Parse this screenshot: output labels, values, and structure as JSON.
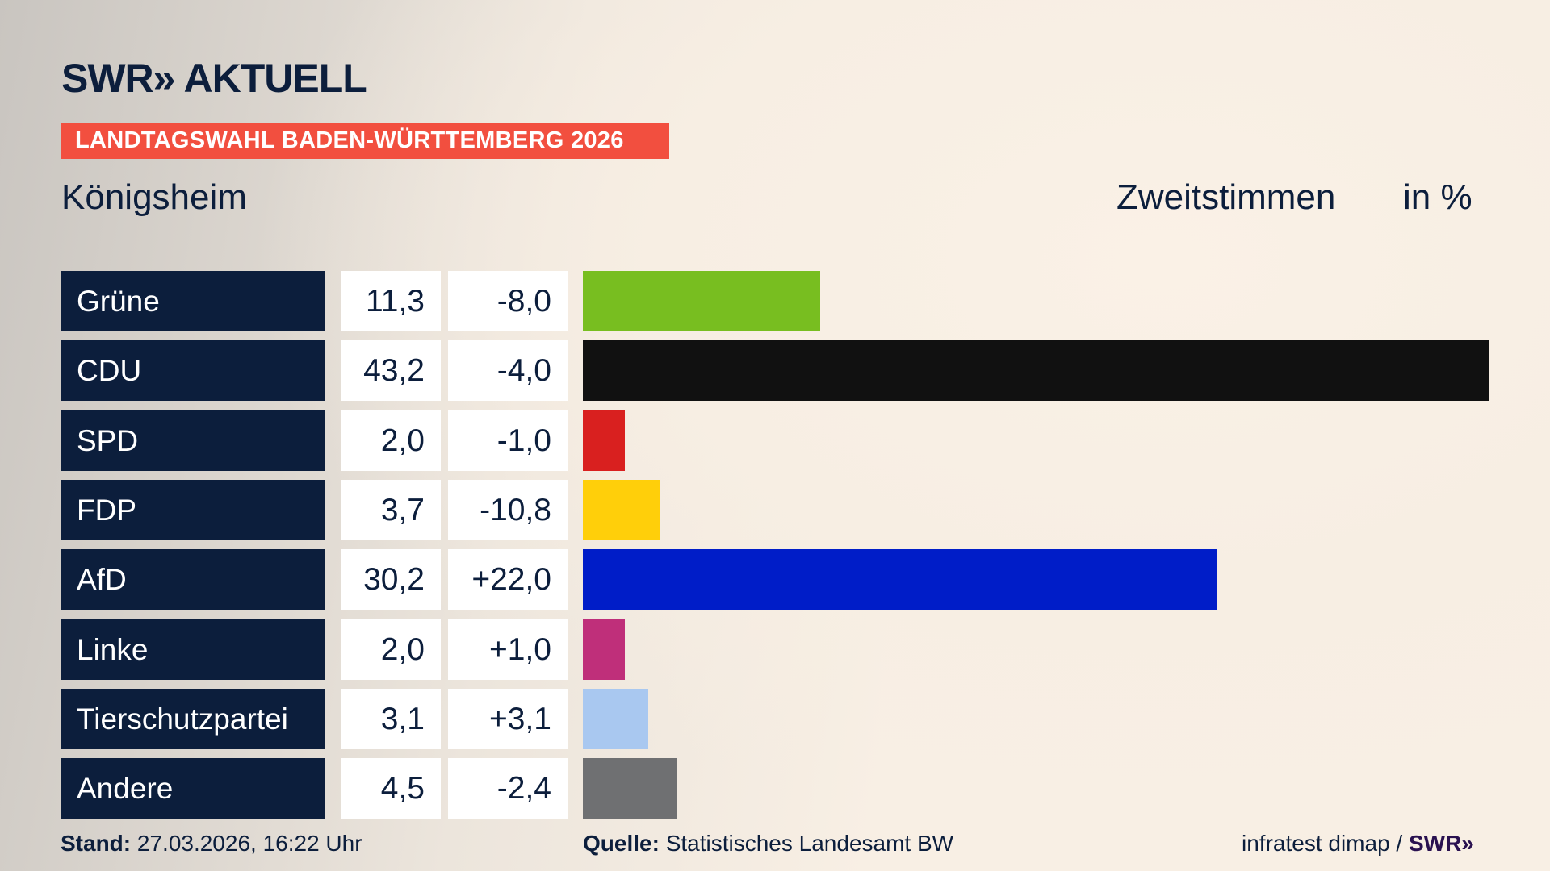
{
  "header": {
    "logo": "SWR» AKTUELL",
    "banner": "LANDTAGSWAHL BADEN-WÜRTTEMBERG 2026",
    "place": "Königsheim",
    "vote_type": "Zweitstimmen",
    "unit": "in %"
  },
  "chart_data": {
    "type": "bar",
    "orientation": "horizontal",
    "categories": [
      "Grüne",
      "CDU",
      "SPD",
      "FDP",
      "AfD",
      "Linke",
      "Tierschutzpartei",
      "Andere"
    ],
    "values": [
      "11,3",
      "43,2",
      "2,0",
      "3,7",
      "30,2",
      "2,0",
      "3,1",
      "4,5"
    ],
    "numeric_values": [
      11.3,
      43.2,
      2.0,
      3.7,
      30.2,
      2.0,
      3.1,
      4.5
    ],
    "changes": [
      "-8,0",
      "-4,0",
      "-1,0",
      "-10,8",
      "+22,0",
      "+1,0",
      "+3,1",
      "-2,4"
    ],
    "colors": [
      "#78be20",
      "#111111",
      "#d9201f",
      "#ffcf0a",
      "#001dc8",
      "#bf2f7a",
      "#a9c8f0",
      "#6f7072"
    ],
    "grid": false
  },
  "footer": {
    "stand_label": "Stand:",
    "stand_value": "27.03.2026, 16:22 Uhr",
    "source_label": "Quelle:",
    "source_value": "Statistisches Landesamt BW",
    "credit": "infratest dimap / ",
    "credit_logo": "SWR»"
  }
}
